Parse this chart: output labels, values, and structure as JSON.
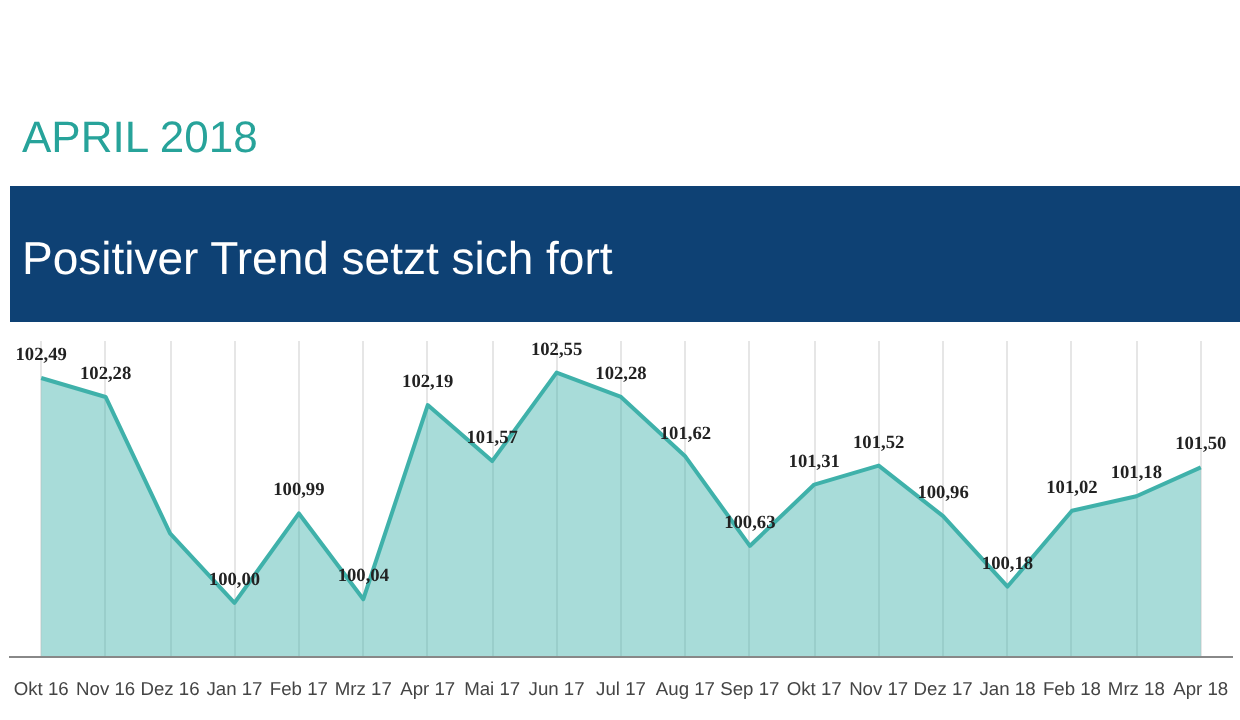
{
  "chart_data": {
    "type": "area",
    "title": "APRIL 2018",
    "subtitle": "Positiver Trend setzt sich fort",
    "categories": [
      "Okt 16",
      "Nov 16",
      "Dez 16",
      "Jan 17",
      "Feb 17",
      "Mrz 17",
      "Apr 17",
      "Mai 17",
      "Jun 17",
      "Jul 17",
      "Aug 17",
      "Sep 17",
      "Okt 17",
      "Nov 17",
      "Dez 17",
      "Jan 18",
      "Feb 18",
      "Mrz 18",
      "Apr 18"
    ],
    "series": [
      {
        "color": "#3fb1aa",
        "values": [
          102.49,
          102.28,
          100.77,
          100.0,
          100.99,
          100.04,
          102.19,
          101.57,
          102.55,
          102.28,
          101.62,
          100.63,
          101.31,
          101.52,
          100.96,
          100.18,
          101.02,
          101.18,
          101.5
        ],
        "value_labels": [
          "102,49",
          "102,28",
          null,
          "100,00",
          "100,99",
          "100,04",
          "102,19",
          "101,57",
          "102,55",
          "102,28",
          "101,62",
          "100,63",
          "101,31",
          "101,52",
          "100,96",
          "100,18",
          "101,02",
          "101,18",
          "101,50"
        ]
      }
    ],
    "ylim": [
      99.4,
      102.9
    ],
    "grid": "x"
  }
}
